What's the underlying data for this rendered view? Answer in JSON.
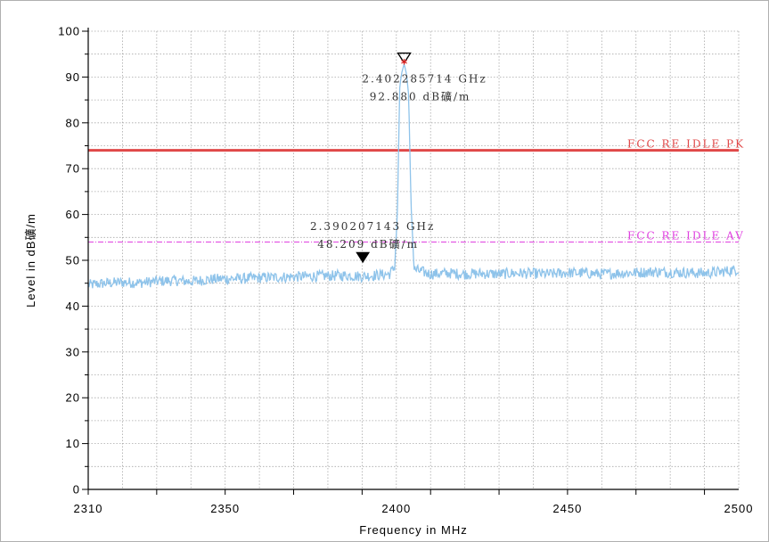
{
  "chart_data": {
    "type": "line",
    "xlabel": "Frequency in MHz",
    "ylabel": "Level in dB礦/m",
    "xlim": [
      2310,
      2500
    ],
    "ylim": [
      0,
      100
    ],
    "x_ticks": [
      2310,
      2350,
      2400,
      2450,
      2500
    ],
    "y_ticks": [
      0,
      10,
      20,
      30,
      40,
      50,
      60,
      70,
      80,
      90,
      100
    ],
    "grid": true,
    "series": [
      {
        "color": "#8ec3ea",
        "x": [
          2310,
          2315,
          2320,
          2325,
          2330,
          2335,
          2340,
          2345,
          2350,
          2355,
          2360,
          2365,
          2370,
          2375,
          2380,
          2385,
          2390,
          2395,
          2398,
          2399.5,
          2400.3,
          2401,
          2401.6,
          2402.29,
          2403,
          2403.6,
          2404.3,
          2405.2,
          2410,
          2415,
          2420,
          2425,
          2430,
          2435,
          2440,
          2445,
          2450,
          2455,
          2460,
          2465,
          2470,
          2475,
          2480,
          2485,
          2490,
          2495,
          2500
        ],
        "y": [
          44.6,
          45.0,
          45.2,
          45.1,
          45.4,
          45.6,
          45.4,
          45.8,
          46.0,
          46.0,
          46.2,
          46.3,
          46.4,
          46.5,
          46.6,
          46.7,
          46.5,
          46.8,
          47.0,
          48.5,
          60.0,
          88.0,
          91.0,
          92.88,
          90.5,
          86.0,
          62.0,
          48.0,
          47.0,
          47.2,
          47.0,
          47.1,
          47.0,
          47.2,
          47.1,
          47.0,
          47.3,
          47.2,
          47.0,
          47.2,
          47.3,
          47.5,
          47.4,
          47.3,
          47.2,
          47.5,
          48.0
        ]
      }
    ],
    "limit_lines": [
      {
        "label": "FCC RE IDLE PK",
        "y": 74,
        "color": "#e04848",
        "style": "solid"
      },
      {
        "label": "FCC RE IDLE AV",
        "y": 54,
        "color": "#e040e0",
        "style": "dash-dot"
      }
    ],
    "markers": [
      {
        "freq": "2.402285714 GHz",
        "level": "92.880 dB礦/m",
        "x": 2402.285714,
        "y": 92.88,
        "symbol": "open-triangle"
      },
      {
        "freq": "2.390207143 GHz",
        "level": "48.209 dB礦/m",
        "x": 2390.207143,
        "y": 48.209,
        "symbol": "filled-triangle"
      }
    ]
  }
}
